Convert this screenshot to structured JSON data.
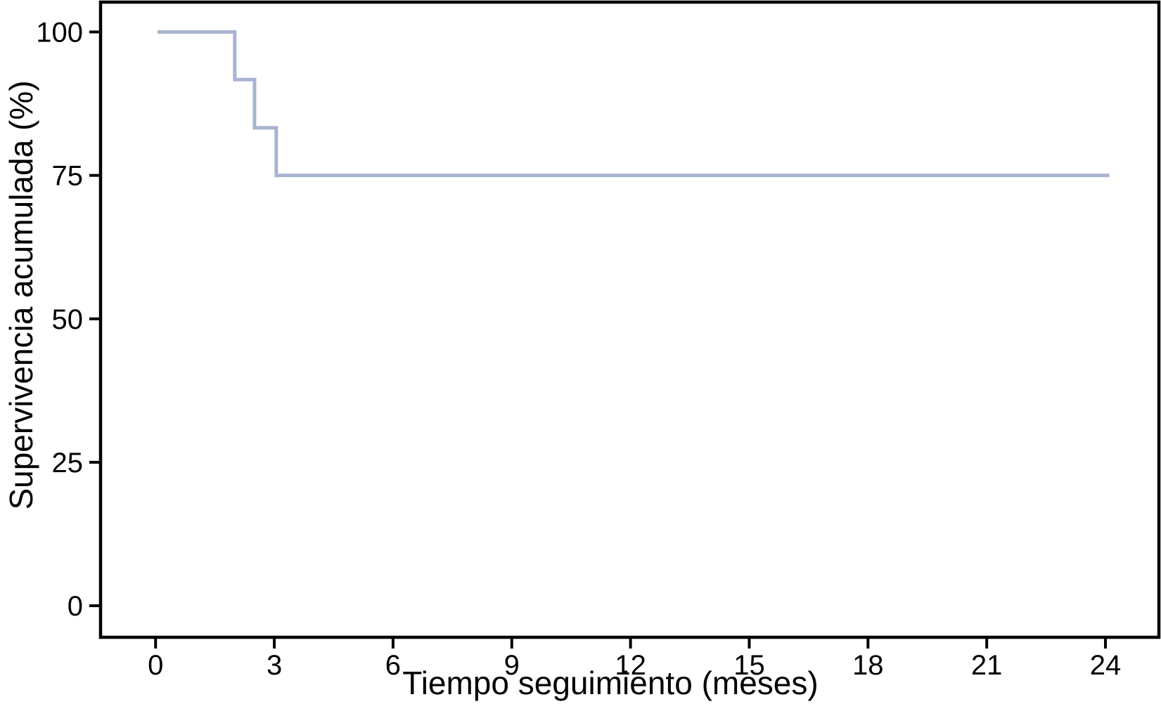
{
  "figure": {
    "background_color": "#ffffff",
    "frame_color": "#000000"
  },
  "chart_data": {
    "type": "line",
    "subtype": "kaplan-meier-step",
    "title": "",
    "xlabel": "Tiempo seguimiento (meses)",
    "ylabel": "Supervivencia acumulada (%)",
    "x_ticks": [
      0,
      3,
      6,
      9,
      12,
      15,
      18,
      21,
      24
    ],
    "y_ticks": [
      0,
      25,
      50,
      75,
      100
    ],
    "xlim": [
      -1.39,
      25.35
    ],
    "ylim": [
      -5.5,
      105.2
    ],
    "grid": false,
    "legend": "none",
    "axis_color": "#000000",
    "tick_label_color": "#000000",
    "series": [
      {
        "name": "Supervivencia acumulada",
        "color": "#a9b3d3",
        "line_width": 5,
        "step": "post",
        "points": [
          {
            "t": 0.05,
            "s": 100
          },
          {
            "t": 2.0,
            "s": 91.7
          },
          {
            "t": 2.5,
            "s": 83.3
          },
          {
            "t": 3.05,
            "s": 75
          },
          {
            "t": 24.1,
            "s": 75
          }
        ],
        "events": [
          {
            "time": 2.0,
            "survival_pct": 91.7
          },
          {
            "time": 2.5,
            "survival_pct": 83.3
          },
          {
            "time": 3.0,
            "survival_pct": 75.0
          }
        ]
      }
    ]
  }
}
